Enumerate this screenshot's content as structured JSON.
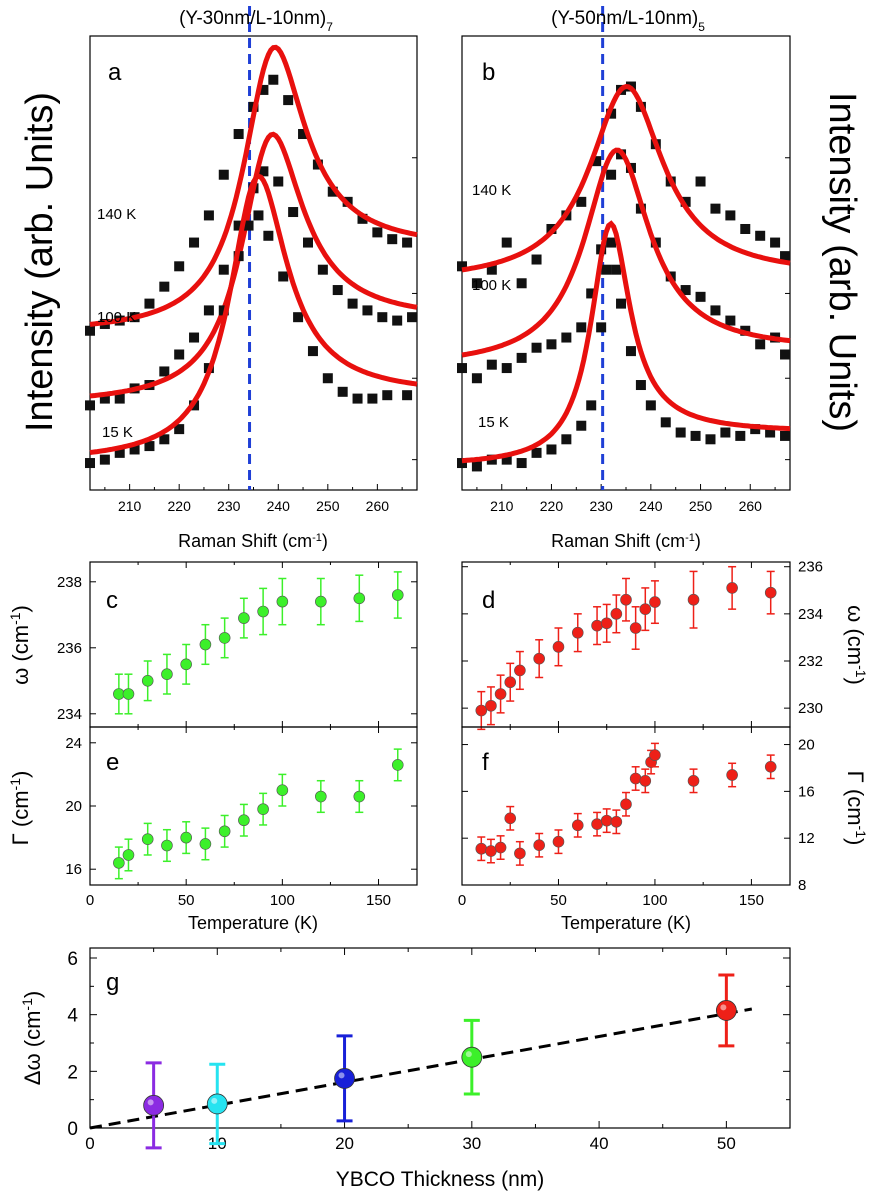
{
  "colors": {
    "fit": "#e8100e",
    "marker": "#111111",
    "dashed": "#1f3fd6",
    "green": "#3cf02a",
    "red": "#ee2018"
  },
  "figure": {
    "titles": {
      "a": "(Y-30nm/L-10nm)",
      "a_sub": "7",
      "b": "(Y-50nm/L-10nm)",
      "b_sub": "5"
    },
    "left_ylabel": "Intensity (arb. Units)",
    "right_ylabel": "Intensity (arb. Units)",
    "raman_xlabel": "Raman Shift (cm",
    "raman_xlabel_sup": "-1",
    "temp_xlabel": "Temperature (K)",
    "omega_label_left": "ω (cm",
    "omega_label_right": "ω (cm",
    "gamma_label_left": "Γ (cm",
    "gamma_label_right": "Γ (cm",
    "unit_sup": "-1",
    "g_ylabel": "Δω (cm",
    "g_xlabel": "YBCO Thickness (nm)",
    "panel_letters": [
      "a",
      "b",
      "c",
      "d",
      "e",
      "f",
      "g"
    ]
  },
  "chart_data": [
    {
      "panel": "a",
      "type": "scatter",
      "xlabel": "Raman Shift (cm-1)",
      "ylabel": "Intensity (arb. Units)",
      "xlim": [
        202,
        268
      ],
      "xticks": [
        210,
        220,
        230,
        240,
        250,
        260
      ],
      "dashed_line_x": 234.2,
      "series": [
        {
          "name": "140 K",
          "fit": {
            "center": 238.5,
            "width": 7.5,
            "amplitude": 0.75,
            "baseline": 0.43,
            "baseline_right": 0.68
          },
          "points": [
            [
              202,
              0.44
            ],
            [
              205,
              0.46
            ],
            [
              208,
              0.47
            ],
            [
              211,
              0.48
            ],
            [
              214,
              0.52
            ],
            [
              217,
              0.57
            ],
            [
              220,
              0.63
            ],
            [
              223,
              0.7
            ],
            [
              226,
              0.78
            ],
            [
              229,
              0.9
            ],
            [
              232,
              1.02
            ],
            [
              235,
              1.1
            ],
            [
              237,
              1.15
            ],
            [
              239,
              1.18
            ],
            [
              242,
              1.12
            ],
            [
              245,
              1.02
            ],
            [
              248,
              0.93
            ],
            [
              251,
              0.85
            ],
            [
              254,
              0.82
            ],
            [
              257,
              0.77
            ],
            [
              260,
              0.73
            ],
            [
              263,
              0.71
            ],
            [
              266,
              0.7
            ]
          ]
        },
        {
          "name": "100 K",
          "fit": {
            "center": 238.0,
            "width": 7.5,
            "amplitude": 0.7,
            "baseline": 0.22,
            "baseline_right": 0.47
          },
          "points": [
            [
              202,
              0.22
            ],
            [
              205,
              0.24
            ],
            [
              208,
              0.24
            ],
            [
              211,
              0.27
            ],
            [
              214,
              0.28
            ],
            [
              217,
              0.32
            ],
            [
              220,
              0.37
            ],
            [
              223,
              0.42
            ],
            [
              226,
              0.5
            ],
            [
              229,
              0.62
            ],
            [
              232,
              0.75
            ],
            [
              235,
              0.86
            ],
            [
              237,
              0.91
            ],
            [
              240,
              0.88
            ],
            [
              243,
              0.79
            ],
            [
              246,
              0.7
            ],
            [
              249,
              0.62
            ],
            [
              252,
              0.56
            ],
            [
              255,
              0.52
            ],
            [
              258,
              0.5
            ],
            [
              261,
              0.48
            ],
            [
              264,
              0.47
            ],
            [
              267,
              0.48
            ]
          ]
        },
        {
          "name": "15 K",
          "fit": {
            "center": 235.5,
            "width": 7.0,
            "amplitude": 0.78,
            "baseline": 0.05,
            "baseline_right": 0.25
          },
          "points": [
            [
              202,
              0.05
            ],
            [
              205,
              0.06
            ],
            [
              208,
              0.08
            ],
            [
              211,
              0.09
            ],
            [
              214,
              0.1
            ],
            [
              217,
              0.12
            ],
            [
              220,
              0.15
            ],
            [
              223,
              0.22
            ],
            [
              226,
              0.33
            ],
            [
              229,
              0.5
            ],
            [
              232,
              0.66
            ],
            [
              234,
              0.75
            ],
            [
              236,
              0.78
            ],
            [
              238,
              0.72
            ],
            [
              241,
              0.6
            ],
            [
              244,
              0.48
            ],
            [
              247,
              0.38
            ],
            [
              250,
              0.3
            ],
            [
              253,
              0.26
            ],
            [
              256,
              0.24
            ],
            [
              259,
              0.24
            ],
            [
              262,
              0.25
            ],
            [
              266,
              0.25
            ]
          ]
        }
      ]
    },
    {
      "panel": "b",
      "type": "scatter",
      "xlabel": "Raman Shift (cm-1)",
      "ylabel": "Intensity (arb. Units)",
      "xlim": [
        202,
        268
      ],
      "xticks": [
        210,
        220,
        230,
        240,
        250,
        260
      ],
      "dashed_line_x": 230.3,
      "series": [
        {
          "name": "140 K",
          "fit": {
            "center": 235.0,
            "width": 9.0,
            "amplitude": 0.6,
            "baseline": 0.58,
            "baseline_right": 0.6
          },
          "points": [
            [
              202,
              0.63
            ],
            [
              205,
              0.58
            ],
            [
              208,
              0.62
            ],
            [
              211,
              0.7
            ],
            [
              214,
              0.58
            ],
            [
              217,
              0.65
            ],
            [
              220,
              0.74
            ],
            [
              223,
              0.78
            ],
            [
              226,
              0.82
            ],
            [
              229,
              0.94
            ],
            [
              232,
              1.08
            ],
            [
              234,
              1.15
            ],
            [
              236,
              1.16
            ],
            [
              238,
              1.1
            ],
            [
              241,
              0.99
            ],
            [
              244,
              0.88
            ],
            [
              247,
              0.82
            ],
            [
              250,
              0.88
            ],
            [
              253,
              0.8
            ],
            [
              256,
              0.78
            ],
            [
              259,
              0.74
            ],
            [
              262,
              0.72
            ],
            [
              265,
              0.7
            ],
            [
              267,
              0.66
            ]
          ]
        },
        {
          "name": "100 K",
          "fit": {
            "center": 233.0,
            "width": 8.0,
            "amplitude": 0.65,
            "baseline": 0.33,
            "baseline_right": 0.38
          },
          "points": [
            [
              202,
              0.33
            ],
            [
              205,
              0.3
            ],
            [
              208,
              0.34
            ],
            [
              211,
              0.33
            ],
            [
              214,
              0.36
            ],
            [
              217,
              0.39
            ],
            [
              220,
              0.4
            ],
            [
              223,
              0.42
            ],
            [
              226,
              0.45
            ],
            [
              228,
              0.55
            ],
            [
              230,
              0.68
            ],
            [
              232,
              0.9
            ],
            [
              234,
              0.96
            ],
            [
              236,
              0.92
            ],
            [
              238,
              0.8
            ],
            [
              241,
              0.7
            ],
            [
              244,
              0.6
            ],
            [
              247,
              0.56
            ],
            [
              250,
              0.54
            ],
            [
              253,
              0.5
            ],
            [
              256,
              0.47
            ],
            [
              259,
              0.44
            ],
            [
              262,
              0.4
            ],
            [
              265,
              0.42
            ],
            [
              267,
              0.37
            ]
          ]
        },
        {
          "name": "15 K",
          "fit": {
            "center": 231.8,
            "width": 4.8,
            "amplitude": 0.7,
            "baseline": 0.04,
            "baseline_right": 0.14
          },
          "points": [
            [
              202,
              0.05
            ],
            [
              205,
              0.04
            ],
            [
              208,
              0.06
            ],
            [
              211,
              0.06
            ],
            [
              214,
              0.05
            ],
            [
              217,
              0.08
            ],
            [
              220,
              0.09
            ],
            [
              223,
              0.12
            ],
            [
              226,
              0.16
            ],
            [
              228,
              0.22
            ],
            [
              230,
              0.45
            ],
            [
              231,
              0.62
            ],
            [
              232,
              0.7
            ],
            [
              233,
              0.62
            ],
            [
              234,
              0.52
            ],
            [
              236,
              0.38
            ],
            [
              238,
              0.28
            ],
            [
              240,
              0.22
            ],
            [
              243,
              0.17
            ],
            [
              246,
              0.14
            ],
            [
              249,
              0.13
            ],
            [
              252,
              0.12
            ],
            [
              255,
              0.14
            ],
            [
              258,
              0.13
            ],
            [
              261,
              0.15
            ],
            [
              264,
              0.14
            ],
            [
              267,
              0.13
            ]
          ]
        }
      ]
    },
    {
      "panel": "c",
      "type": "scatter",
      "ylabel": "ω (cm-1)",
      "xlim": [
        0,
        170
      ],
      "ylim": [
        233.6,
        238.6
      ],
      "yticks": [
        234,
        236,
        238
      ],
      "x": [
        15,
        20,
        30,
        40,
        50,
        60,
        70,
        80,
        90,
        100,
        120,
        140,
        160
      ],
      "y": [
        234.6,
        234.6,
        235.0,
        235.2,
        235.5,
        236.1,
        236.3,
        236.9,
        237.1,
        237.4,
        237.4,
        237.5,
        237.6
      ],
      "err": [
        0.6,
        0.6,
        0.6,
        0.6,
        0.6,
        0.6,
        0.6,
        0.6,
        0.7,
        0.7,
        0.7,
        0.7,
        0.7
      ]
    },
    {
      "panel": "d",
      "type": "scatter",
      "ylabel": "ω (cm-1)",
      "xlim": [
        0,
        170
      ],
      "ylim": [
        229.2,
        236.2
      ],
      "yticks": [
        230,
        232,
        234,
        236
      ],
      "x": [
        10,
        15,
        20,
        25,
        30,
        40,
        50,
        60,
        70,
        75,
        80,
        85,
        90,
        95,
        100,
        120,
        140,
        160
      ],
      "y": [
        229.9,
        230.1,
        230.6,
        231.1,
        231.6,
        232.1,
        232.6,
        233.2,
        233.5,
        233.6,
        234.0,
        234.6,
        233.4,
        234.2,
        234.5,
        234.6,
        235.1,
        234.9
      ],
      "err": [
        0.8,
        0.8,
        0.8,
        0.8,
        0.8,
        0.8,
        0.8,
        0.8,
        0.8,
        0.8,
        0.8,
        0.9,
        0.9,
        0.9,
        0.9,
        1.2,
        0.9,
        0.9
      ]
    },
    {
      "panel": "e",
      "type": "scatter",
      "ylabel": "Γ (cm-1)",
      "xlabel": "Temperature (K)",
      "xlim": [
        0,
        170
      ],
      "xticks": [
        0,
        50,
        100,
        150
      ],
      "ylim": [
        15,
        25
      ],
      "yticks": [
        16,
        20,
        24
      ],
      "x": [
        15,
        20,
        30,
        40,
        50,
        60,
        70,
        80,
        90,
        100,
        120,
        140,
        160
      ],
      "y": [
        16.4,
        16.9,
        17.9,
        17.5,
        18.0,
        17.6,
        18.4,
        19.1,
        19.8,
        21.0,
        20.6,
        20.6,
        22.6
      ],
      "err": [
        1.0,
        1.0,
        1.0,
        1.0,
        1.0,
        1.0,
        1.0,
        1.0,
        1.0,
        1.0,
        1.0,
        1.0,
        1.0
      ]
    },
    {
      "panel": "f",
      "type": "scatter",
      "ylabel": "Γ (cm-1)",
      "xlabel": "Temperature (K)",
      "xlim": [
        0,
        170
      ],
      "xticks": [
        0,
        50,
        100,
        150
      ],
      "ylim": [
        8,
        21.5
      ],
      "yticks": [
        8,
        12,
        16,
        20
      ],
      "x": [
        10,
        15,
        20,
        25,
        30,
        40,
        50,
        60,
        70,
        75,
        80,
        85,
        90,
        95,
        98,
        100,
        120,
        140,
        160
      ],
      "y": [
        11.1,
        10.9,
        11.2,
        13.7,
        10.7,
        11.4,
        11.7,
        13.1,
        13.2,
        13.5,
        13.4,
        14.9,
        17.1,
        16.9,
        18.5,
        19.1,
        16.9,
        17.4,
        18.1
      ],
      "err": [
        1.0,
        1.0,
        1.0,
        1.0,
        1.0,
        1.0,
        1.0,
        1.0,
        1.0,
        1.0,
        1.0,
        1.0,
        1.0,
        1.0,
        1.0,
        1.0,
        1.0,
        1.0,
        1.0
      ]
    },
    {
      "panel": "g",
      "type": "scatter",
      "xlabel": "YBCO Thickness (nm)",
      "ylabel": "Δω (cm-1)",
      "xlim": [
        0,
        55
      ],
      "xticks": [
        0,
        10,
        20,
        30,
        40,
        50
      ],
      "ylim": [
        0,
        6
      ],
      "yticks": [
        0,
        2,
        4,
        6
      ],
      "x": [
        5,
        10,
        20,
        30,
        50
      ],
      "y": [
        0.8,
        0.85,
        1.75,
        2.5,
        4.15
      ],
      "err": [
        1.5,
        1.4,
        1.5,
        1.3,
        1.25
      ],
      "colors": [
        "#8b2be2",
        "#26e3f0",
        "#1820d8",
        "#3cf02a",
        "#ee2018"
      ],
      "trend_line": {
        "x": [
          0,
          52
        ],
        "y": [
          0,
          4.2
        ]
      }
    }
  ]
}
